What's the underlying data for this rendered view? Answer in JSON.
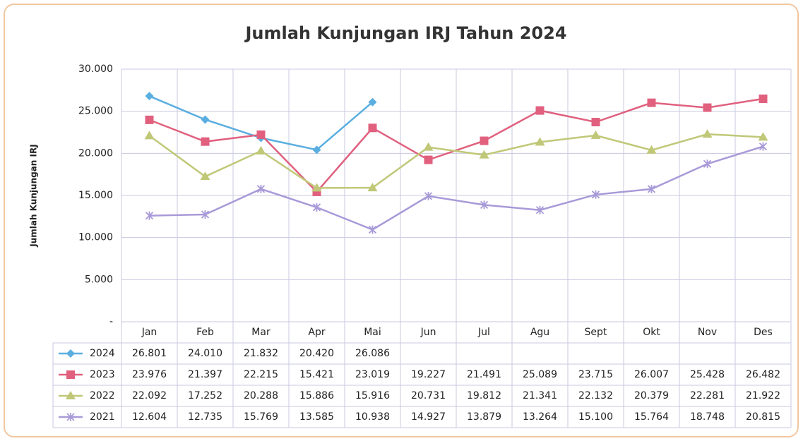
{
  "chart_data": {
    "type": "line",
    "title": "Jumlah Kunjungan IRJ  Tahun 2024",
    "y_label": "Jumlah Kunjungan IRJ",
    "categories": [
      "Jan",
      "Feb",
      "Mar",
      "Apr",
      "Mai",
      "Jun",
      "Jul",
      "Agu",
      "Sept",
      "Okt",
      "Nov",
      "Des"
    ],
    "ylim": [
      0,
      30000
    ],
    "yticks": [
      {
        "value": 0,
        "label": "-"
      },
      {
        "value": 5000,
        "label": "5.000"
      },
      {
        "value": 10000,
        "label": "10.000"
      },
      {
        "value": 15000,
        "label": "15.000"
      },
      {
        "value": 20000,
        "label": "20.000"
      },
      {
        "value": 25000,
        "label": "25.000"
      },
      {
        "value": 30000,
        "label": "30.000"
      }
    ],
    "grid": true,
    "series": [
      {
        "name": "2024",
        "color": "#5aaee0",
        "marker": "diamond",
        "values": [
          26801,
          24010,
          21832,
          20420,
          26086,
          null,
          null,
          null,
          null,
          null,
          null,
          null
        ],
        "value_labels": [
          "26.801",
          "24.010",
          "21.832",
          "20.420",
          "26.086",
          null,
          null,
          null,
          null,
          null,
          null,
          null
        ]
      },
      {
        "name": "2023",
        "color": "#e0607e",
        "marker": "square",
        "values": [
          23976,
          21397,
          22215,
          15421,
          23019,
          19227,
          21491,
          25089,
          23715,
          26007,
          25428,
          26482
        ],
        "value_labels": [
          "23.976",
          "21.397",
          "22.215",
          "15.421",
          "23.019",
          "19.227",
          "21.491",
          "25.089",
          "23.715",
          "26.007",
          "25.428",
          "26.482"
        ]
      },
      {
        "name": "2022",
        "color": "#c0c878",
        "marker": "triangle",
        "values": [
          22092,
          17252,
          20288,
          15886,
          15916,
          20731,
          19812,
          21341,
          22132,
          20379,
          22281,
          21922
        ],
        "value_labels": [
          "22.092",
          "17.252",
          "20.288",
          "15.886",
          "15.916",
          "20.731",
          "19.812",
          "21.341",
          "22.132",
          "20.379",
          "22.281",
          "21.922"
        ]
      },
      {
        "name": "2021",
        "color": "#a89ad8",
        "marker": "x",
        "values": [
          12604,
          12735,
          15769,
          13585,
          10938,
          14927,
          13879,
          13264,
          15100,
          15764,
          18748,
          20815
        ],
        "value_labels": [
          "12.604",
          "12.735",
          "15.769",
          "13.585",
          "10.938",
          "14.927",
          "13.879",
          "13.264",
          "15.100",
          "15.764",
          "18.748",
          "20.815"
        ]
      }
    ]
  }
}
